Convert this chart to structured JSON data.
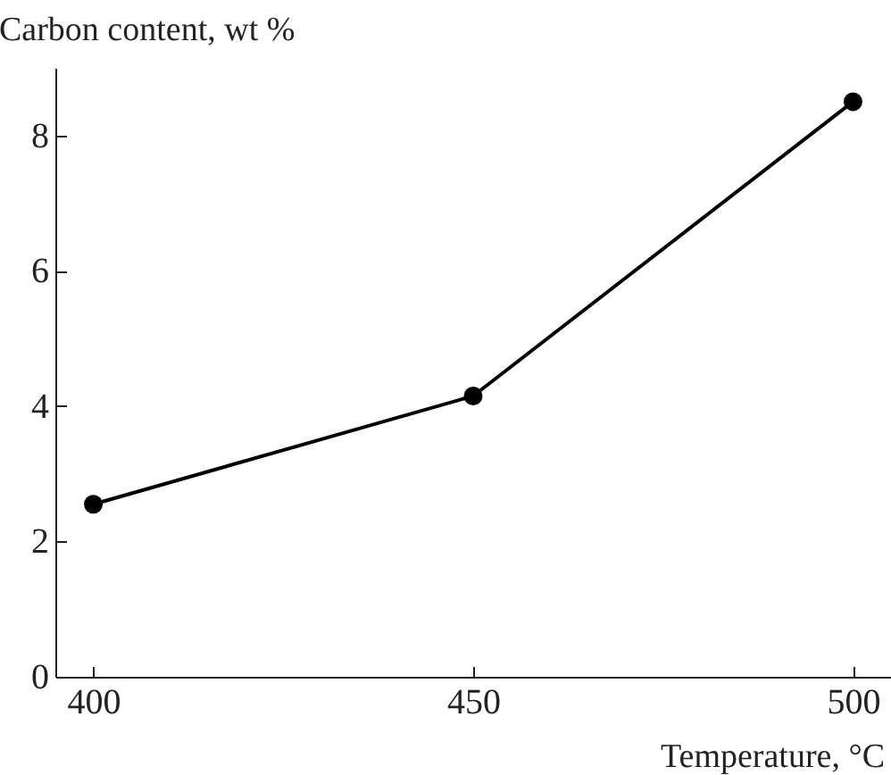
{
  "chart_data": {
    "type": "line",
    "xlabel": "Temperature, °C",
    "ylabel": "Carbon content, wt %",
    "x": [
      400,
      450,
      500
    ],
    "series": [
      {
        "color": "#000000",
        "values": [
          2.55,
          4.15,
          8.5
        ]
      }
    ],
    "xlim": [
      395,
      505
    ],
    "xticks": [
      400,
      450,
      500
    ],
    "ylim": [
      0,
      9
    ],
    "yticks": [
      0,
      2,
      4,
      6,
      8
    ],
    "marker": "circle",
    "line_style": "solid",
    "grid": false
  }
}
